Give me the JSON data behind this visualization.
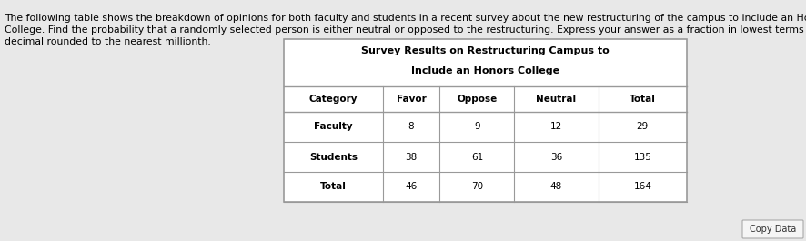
{
  "title_line1": "Survey Results on Restructuring Campus to",
  "title_line2": "Include an Honors College",
  "headers": [
    "Category",
    "Favor",
    "Oppose",
    "Neutral",
    "Total"
  ],
  "rows": [
    [
      "Faculty",
      "8",
      "9",
      "12",
      "29"
    ],
    [
      "Students",
      "38",
      "61",
      "36",
      "135"
    ],
    [
      "Total",
      "46",
      "70",
      "48",
      "164"
    ]
  ],
  "paragraph": "The following table shows the breakdown of opinions for both faculty and students in a recent survey about the new restructuring of the campus to include an Honors\nCollege. Find the probability that a randomly selected person is either neutral or opposed to the restructuring. Express your answer as a fraction in lowest terms or a\ndecimal rounded to the nearest millionth.",
  "copy_data_label": "Copy Data",
  "background_color": "#e8e8e8",
  "table_bg": "#ffffff",
  "text_color": "#000000",
  "border_color": "#999999",
  "title_fontsize": 8.0,
  "cell_fontsize": 7.5,
  "para_fontsize": 7.8
}
